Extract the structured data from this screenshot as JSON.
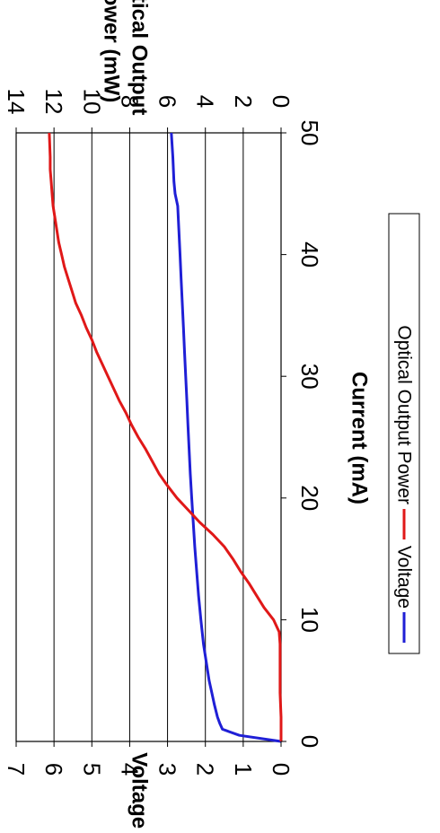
{
  "chart_data": {
    "type": "line",
    "orientation": "rotated 90 degrees clockwise",
    "xlabel": "Current (mA)",
    "ylabel_left": "Voltage (V)",
    "ylabel_right": "Optical Output Power (mW)",
    "ylabel_right_lines": [
      "Optical Output",
      "Power (mW)"
    ],
    "xlim": [
      0,
      50
    ],
    "x_ticks": [
      "0",
      "10",
      "20",
      "30",
      "40",
      "50"
    ],
    "ylim_left": [
      0,
      7
    ],
    "y_ticks_left": [
      "0",
      "1",
      "2",
      "3",
      "4",
      "5",
      "6",
      "7"
    ],
    "ylim_right": [
      0,
      14
    ],
    "y_ticks_right": [
      "0",
      "2",
      "4",
      "6",
      "8",
      "10",
      "12",
      "14"
    ],
    "grid": "horizontal gridlines",
    "legend": "bottom",
    "series": [
      {
        "name": "Voltage",
        "axis": "left",
        "color": "#1f1fd6",
        "x": [
          0,
          0.5,
          1,
          1.5,
          2,
          3,
          4,
          5,
          6,
          7,
          8,
          10,
          12,
          14,
          16,
          18,
          20,
          22,
          24,
          26,
          28,
          30,
          32,
          34,
          36,
          38,
          40,
          42,
          44,
          45,
          46,
          48,
          50
        ],
        "y": [
          0,
          1.1,
          1.55,
          1.62,
          1.68,
          1.76,
          1.83,
          1.9,
          1.95,
          2.0,
          2.05,
          2.12,
          2.18,
          2.23,
          2.28,
          2.32,
          2.36,
          2.4,
          2.43,
          2.46,
          2.49,
          2.52,
          2.55,
          2.58,
          2.61,
          2.64,
          2.67,
          2.7,
          2.73,
          2.8,
          2.83,
          2.86,
          2.9
        ]
      },
      {
        "name": "Optical Output Power",
        "axis": "right",
        "color": "#e01818",
        "x": [
          0,
          2,
          4,
          6,
          8,
          9,
          10,
          11,
          12,
          13,
          14,
          15,
          16,
          17,
          18,
          19,
          20,
          21,
          22,
          23,
          24,
          25,
          26,
          27,
          28,
          29,
          30,
          31,
          32,
          33,
          34,
          35,
          36,
          37,
          38,
          39,
          40,
          41,
          42,
          43,
          44,
          45,
          46,
          47,
          48,
          50
        ],
        "y": [
          0,
          0,
          0.05,
          0.05,
          0.05,
          0.1,
          0.4,
          0.9,
          1.3,
          1.7,
          2.15,
          2.55,
          3.0,
          3.6,
          4.3,
          4.9,
          5.5,
          6.0,
          6.45,
          6.8,
          7.15,
          7.55,
          7.9,
          8.2,
          8.55,
          8.85,
          9.15,
          9.45,
          9.75,
          10.0,
          10.3,
          10.55,
          10.85,
          11.05,
          11.25,
          11.45,
          11.6,
          11.75,
          11.85,
          11.95,
          12.05,
          12.1,
          12.15,
          12.2,
          12.2,
          12.25
        ]
      }
    ]
  }
}
